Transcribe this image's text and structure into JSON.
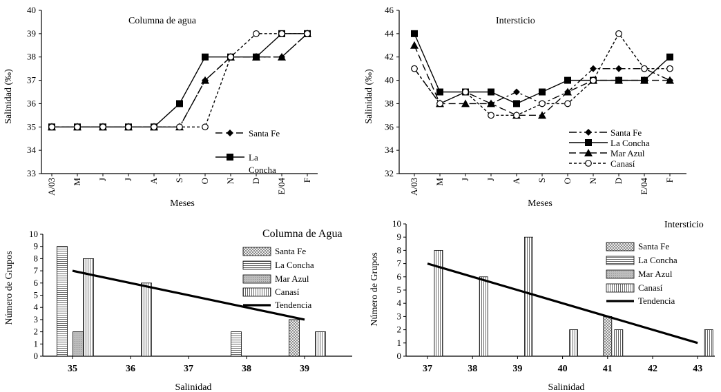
{
  "chart_data": [
    {
      "id": "c1",
      "type": "line",
      "title": "Columna de agua",
      "xlabel": "Meses",
      "ylabel": "Salinidad (‰)",
      "categories": [
        "A/03",
        "M",
        "J",
        "J",
        "A",
        "S",
        "O",
        "N",
        "D",
        "E/04",
        "F"
      ],
      "ylim": [
        33,
        40
      ],
      "yticks": [
        33,
        34,
        35,
        36,
        37,
        38,
        39,
        40
      ],
      "series": [
        {
          "name": "Santa Fe",
          "marker": "diamond",
          "dash": "long",
          "values": [
            35,
            35,
            35,
            35,
            35,
            35,
            37,
            38,
            38,
            38,
            39
          ]
        },
        {
          "name": "La Concha",
          "marker": "square",
          "dash": "solid",
          "values": [
            35,
            35,
            35,
            35,
            35,
            36,
            38,
            38,
            38,
            39,
            39
          ]
        },
        {
          "name": "",
          "marker": "triangle",
          "dash": "longshort",
          "values": [
            35,
            35,
            35,
            35,
            35,
            35,
            37,
            38,
            38,
            38,
            39
          ]
        },
        {
          "name": "",
          "marker": "circle",
          "dash": "short",
          "values": [
            35,
            35,
            35,
            35,
            35,
            35,
            35,
            38,
            39,
            39,
            39
          ]
        }
      ],
      "legend": [
        {
          "name": "Santa Fe",
          "marker": "diamond",
          "dash": "long"
        },
        {
          "name": "La Concha",
          "marker": "square",
          "dash": "solid",
          "wrap": [
            "La",
            "Concha"
          ]
        }
      ]
    },
    {
      "id": "c2",
      "type": "line",
      "title": "Intersticio",
      "xlabel": "Meses",
      "ylabel": "Salinidad (‰)",
      "categories": [
        "A/03",
        "M",
        "J",
        "J",
        "A",
        "S",
        "O",
        "N",
        "D",
        "E/04",
        "F"
      ],
      "ylim": [
        32,
        46
      ],
      "yticks": [
        32,
        34,
        36,
        38,
        40,
        42,
        44,
        46
      ],
      "series": [
        {
          "name": "Santa Fe",
          "marker": "diamond",
          "dash": "longshort",
          "values": [
            41,
            38,
            39,
            38,
            39,
            38,
            39,
            41,
            41,
            41,
            40
          ]
        },
        {
          "name": "La Concha",
          "marker": "square",
          "dash": "solid",
          "values": [
            44,
            39,
            39,
            39,
            38,
            39,
            40,
            40,
            40,
            40,
            42
          ]
        },
        {
          "name": "Mar Azul",
          "marker": "triangle",
          "dash": "long",
          "values": [
            43,
            38,
            38,
            38,
            37,
            37,
            39,
            40,
            40,
            40,
            40
          ]
        },
        {
          "name": "Canasí",
          "marker": "circle",
          "dash": "short",
          "values": [
            41,
            38,
            39,
            37,
            37,
            38,
            38,
            40,
            44,
            41,
            41
          ]
        }
      ],
      "legend": [
        {
          "name": "Santa Fe",
          "marker": "diamond",
          "dash": "longshort"
        },
        {
          "name": "La Concha",
          "marker": "square",
          "dash": "solid"
        },
        {
          "name": "Mar Azul",
          "marker": "triangle",
          "dash": "long"
        },
        {
          "name": "Canasí",
          "marker": "circle",
          "dash": "short"
        }
      ]
    },
    {
      "id": "c3",
      "type": "bar",
      "title": "Columna de Agua",
      "xlabel": "Salinidad",
      "ylabel": "Número de Grupos",
      "categories": [
        "35",
        "36",
        "37",
        "38",
        "39"
      ],
      "ylim": [
        0,
        10
      ],
      "yticks": [
        0,
        1,
        2,
        3,
        4,
        5,
        6,
        7,
        8,
        9,
        10
      ],
      "series": [
        {
          "name": "Santa Fe",
          "pattern": "cross",
          "values": [
            0,
            0,
            0,
            0,
            3
          ]
        },
        {
          "name": "La Concha",
          "pattern": "hlines",
          "values": [
            9,
            0,
            0,
            2,
            0
          ]
        },
        {
          "name": "Mar Azul",
          "pattern": "grey",
          "values": [
            2,
            0,
            0,
            0,
            0
          ]
        },
        {
          "name": "Canasí",
          "pattern": "vlines",
          "values": [
            8,
            6,
            0,
            0,
            2
          ]
        }
      ],
      "trend": {
        "name": "Tendencia",
        "from": [
          35,
          7
        ],
        "to": [
          39,
          3
        ]
      },
      "legend": [
        "Santa Fe",
        "La Concha",
        "Mar Azul",
        "Canasí",
        "Tendencia"
      ]
    },
    {
      "id": "c4",
      "type": "bar",
      "title": "Intersticio",
      "xlabel": "Salinidad",
      "ylabel": "Número de Grupos",
      "categories": [
        "37",
        "38",
        "39",
        "40",
        "41",
        "42",
        "43"
      ],
      "ylim": [
        0,
        10
      ],
      "yticks": [
        0,
        1,
        2,
        3,
        4,
        5,
        6,
        7,
        8,
        9,
        10
      ],
      "series": [
        {
          "name": "Santa Fe",
          "pattern": "cross",
          "values": [
            0,
            0,
            0,
            0,
            3,
            0,
            0
          ]
        },
        {
          "name": "La Concha",
          "pattern": "hlines",
          "values": [
            0,
            0,
            0,
            0,
            0,
            0,
            0
          ]
        },
        {
          "name": "Mar Azul",
          "pattern": "grey",
          "values": [
            0,
            0,
            0,
            0,
            0,
            0,
            0
          ]
        },
        {
          "name": "Canasí",
          "pattern": "vlines",
          "values": [
            8,
            6,
            9,
            2,
            2,
            0,
            2
          ]
        }
      ],
      "trend": {
        "name": "Tendencia",
        "from": [
          37,
          7
        ],
        "to": [
          43,
          1
        ]
      },
      "legend": [
        "Santa Fe",
        "La Concha",
        "Mar Azul",
        "Canasí",
        "Tendencia"
      ]
    }
  ]
}
